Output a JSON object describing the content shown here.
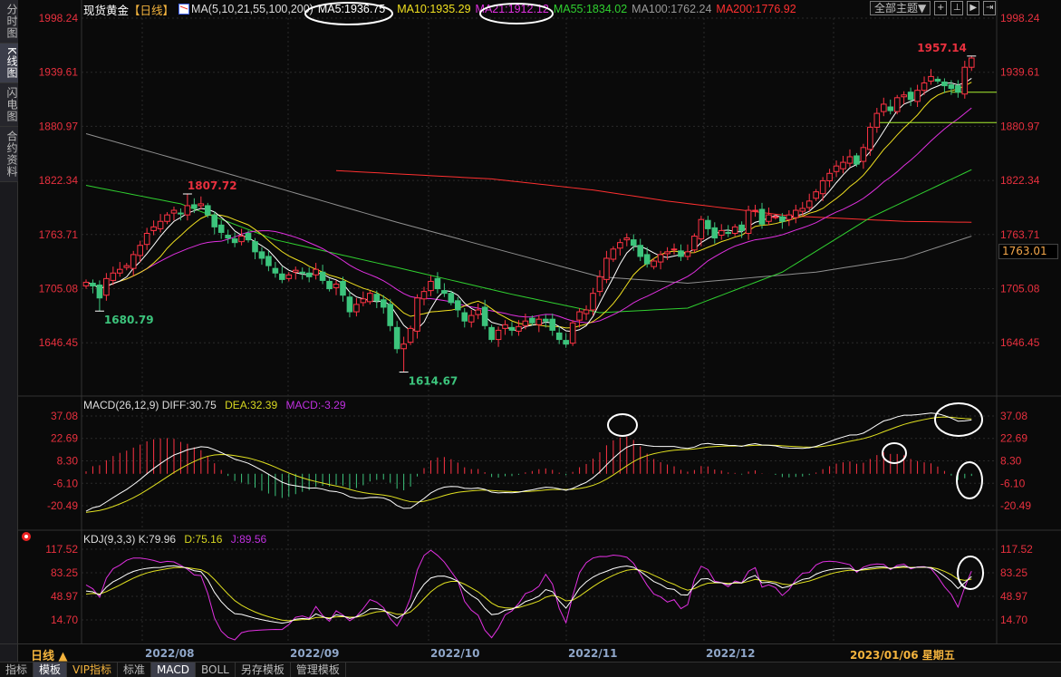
{
  "sidebar": {
    "items": [
      {
        "label": "分时图"
      },
      {
        "label": "K线图",
        "active": true
      },
      {
        "label": "闪电图"
      },
      {
        "label": "合约资料"
      }
    ]
  },
  "header": {
    "title": "现货黄金",
    "period": "【日线】",
    "ma_params": "MA(5,10,21,55,100,200)",
    "ma5": "MA5:1936.75",
    "ma10": "MA10:1935.29",
    "ma21": "MA21:1912.12",
    "ma55": "MA55:1834.02",
    "ma100": "MA100:1762.24",
    "ma200": "MA200:1776.92",
    "theme_button": "全部主题▼",
    "icons": [
      "crosshair-icon",
      "zoom-in-icon",
      "play-icon",
      "exit-icon"
    ]
  },
  "colors": {
    "up": "#ff3344",
    "down": "#3cc47c",
    "ma5": "#ffffff",
    "ma10": "#f0e020",
    "ma21": "#e030e0",
    "ma55": "#30d030",
    "ma100": "#909090",
    "ma200": "#ff3030",
    "axis_text": "#e8303e"
  },
  "price_axis": [
    "1998.24",
    "1939.61",
    "1880.97",
    "1822.34",
    "1763.71",
    "1705.08",
    "1646.45"
  ],
  "price_box": "1763.01",
  "macd": {
    "title": "MACD(26,12,9)",
    "diff": "DIFF:30.75",
    "dea": "DEA:32.39",
    "macd": "MACD:-3.29",
    "axis": [
      "37.08",
      "22.69",
      "8.30",
      "-6.10",
      "-20.49"
    ]
  },
  "kdj": {
    "title": "KDJ(9,3,3)",
    "k": "K:79.96",
    "d": "D:75.16",
    "j": "J:89.56",
    "axis": [
      "117.52",
      "83.25",
      "48.97",
      "14.70"
    ]
  },
  "date_axis": {
    "period_label": "日线 ▲",
    "months": [
      "2022/08",
      "2022/09",
      "2022/10",
      "2022/11",
      "2022/12",
      "2023/01/06 星期五"
    ]
  },
  "bottom_tabs": [
    {
      "label": "指标"
    },
    {
      "label": "模板",
      "active": true
    },
    {
      "label": "VIP指标",
      "vip": true
    },
    {
      "label": "标准"
    },
    {
      "label": "MACD",
      "active": true
    },
    {
      "label": "BOLL"
    },
    {
      "label": "另存模板"
    },
    {
      "label": "管理模板"
    }
  ],
  "chart_data": {
    "type": "candlestick",
    "closes": [
      1712,
      1708,
      1695,
      1716,
      1722,
      1726,
      1730,
      1742,
      1752,
      1765,
      1772,
      1778,
      1785,
      1790,
      1786,
      1795,
      1792,
      1797,
      1785,
      1772,
      1766,
      1760,
      1755,
      1762,
      1758,
      1745,
      1738,
      1730,
      1722,
      1715,
      1720,
      1725,
      1722,
      1718,
      1726,
      1714,
      1705,
      1710,
      1698,
      1680,
      1688,
      1694,
      1700,
      1692,
      1685,
      1665,
      1640,
      1645,
      1662,
      1695,
      1702,
      1713,
      1705,
      1700,
      1690,
      1682,
      1670,
      1676,
      1682,
      1665,
      1650,
      1660,
      1666,
      1660,
      1664,
      1670,
      1668,
      1672,
      1670,
      1660,
      1650,
      1645,
      1668,
      1680,
      1682,
      1700,
      1718,
      1738,
      1748,
      1755,
      1760,
      1752,
      1740,
      1732,
      1735,
      1742,
      1745,
      1748,
      1740,
      1745,
      1762,
      1780,
      1770,
      1760,
      1768,
      1765,
      1772,
      1768,
      1790,
      1790,
      1775,
      1785,
      1783,
      1778,
      1785,
      1790,
      1792,
      1800,
      1810,
      1822,
      1830,
      1838,
      1842,
      1848,
      1840,
      1858,
      1880,
      1895,
      1905,
      1898,
      1912,
      1915,
      1910,
      1920,
      1928,
      1935,
      1930,
      1925,
      1922,
      1918,
      1945,
      1955
    ],
    "extremes": [
      {
        "bar": 15,
        "price": 1807.72,
        "label": "1807.72",
        "type": "high"
      },
      {
        "bar": 2,
        "price": 1680.79,
        "label": "1680.79",
        "type": "low"
      },
      {
        "bar": 47,
        "price": 1614.67,
        "label": "1614.67",
        "type": "low"
      },
      {
        "bar": 131,
        "price": 1957.14,
        "label": "1957.14",
        "type": "high"
      }
    ],
    "ma55": [
      [
        0,
        1817
      ],
      [
        14,
        1797
      ],
      [
        28,
        1758
      ],
      [
        46,
        1728
      ],
      [
        63,
        1699
      ],
      [
        76,
        1679
      ],
      [
        89,
        1684
      ],
      [
        103,
        1723
      ],
      [
        116,
        1782
      ],
      [
        131,
        1834
      ]
    ],
    "ma100": [
      [
        0,
        1873
      ],
      [
        18,
        1836
      ],
      [
        46,
        1777
      ],
      [
        76,
        1718
      ],
      [
        89,
        1711
      ],
      [
        108,
        1723
      ],
      [
        121,
        1738
      ],
      [
        131,
        1762
      ]
    ],
    "ma200": [
      [
        37,
        1833
      ],
      [
        60,
        1824
      ],
      [
        75,
        1812
      ],
      [
        86,
        1800
      ],
      [
        104,
        1784
      ],
      [
        121,
        1778
      ],
      [
        131,
        1777
      ]
    ],
    "hlines": [
      {
        "from_bar": 117,
        "price": 1885
      },
      {
        "from_bar": 128,
        "price": 1918
      }
    ],
    "ylim": [
      1600,
      2005
    ]
  }
}
